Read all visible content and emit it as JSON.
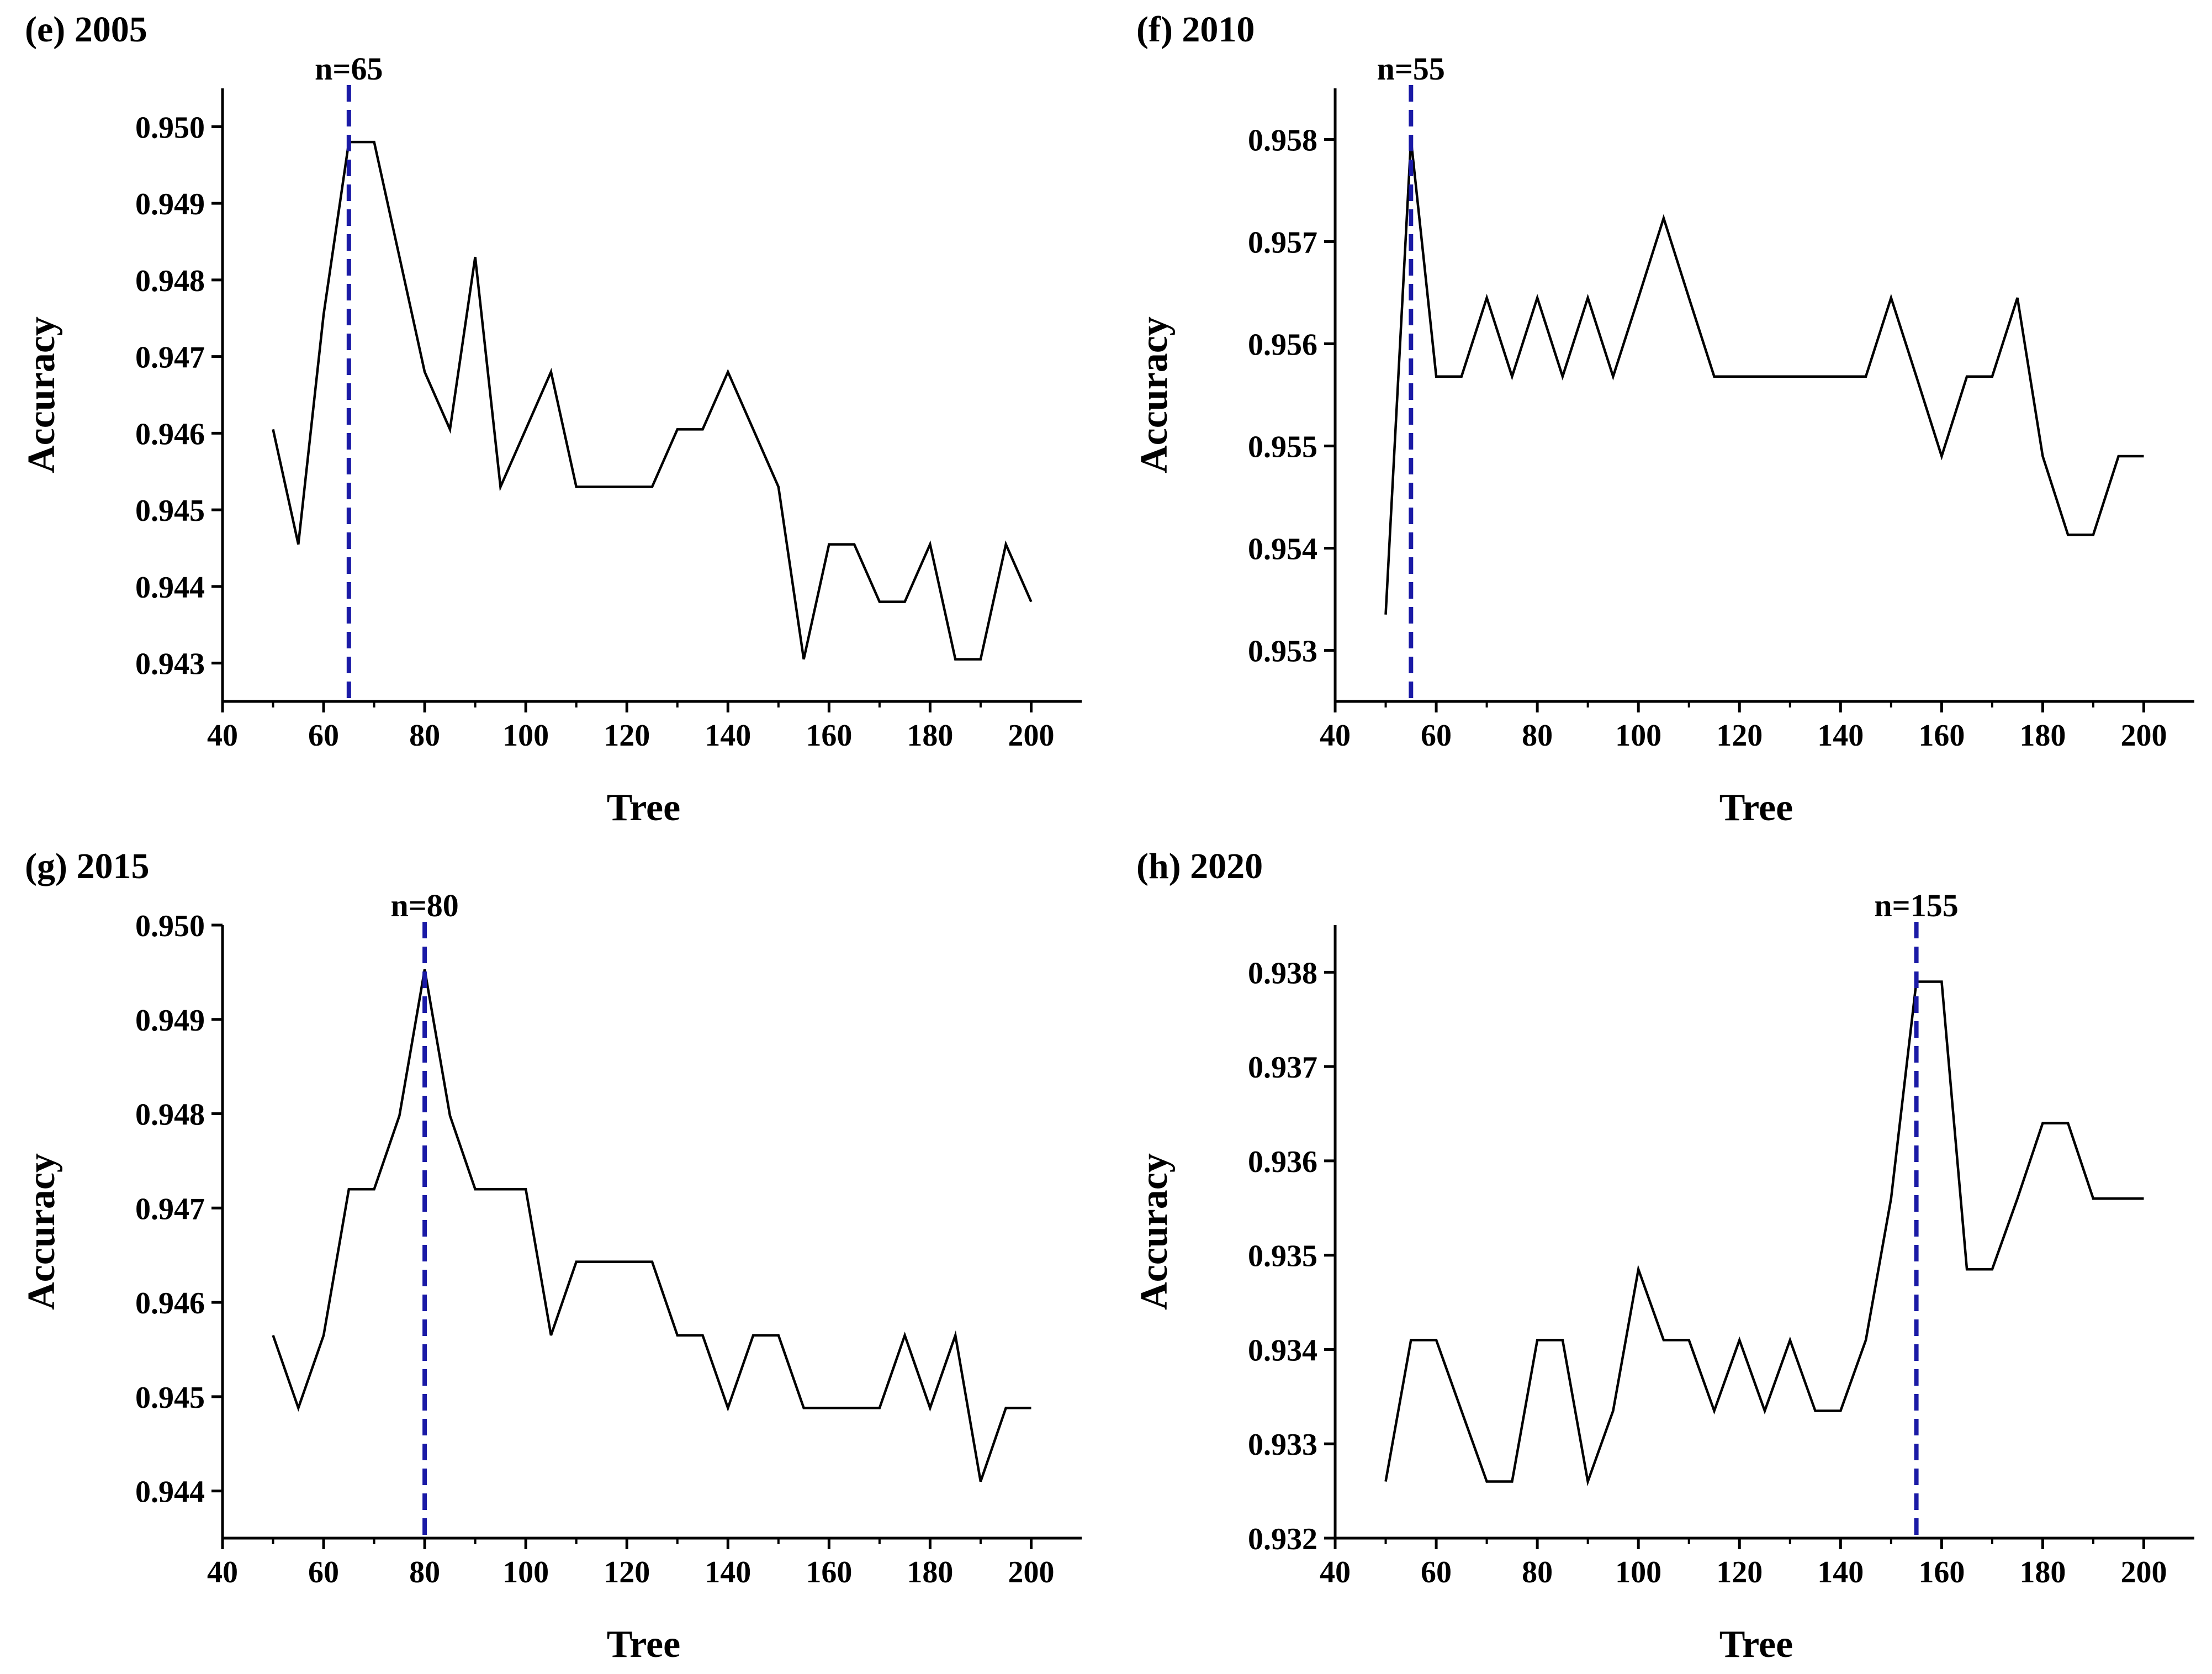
{
  "colors": {
    "line": "#000000",
    "marker": "#1a1aa6",
    "axis": "#000000",
    "background": "#ffffff"
  },
  "chart_data": [
    {
      "type": "line",
      "title": "(e) 2005",
      "xlabel": "Tree",
      "ylabel": "Accuracy",
      "xlim": [
        40,
        210
      ],
      "ylim": [
        0.9425,
        0.9505
      ],
      "xticks": [
        40,
        60,
        80,
        100,
        120,
        140,
        160,
        180,
        200
      ],
      "xtick_labels": [
        "40",
        "60",
        "80",
        "100",
        "120",
        "140",
        "160",
        "180",
        "200"
      ],
      "yticks": [
        0.943,
        0.944,
        0.945,
        0.946,
        0.947,
        0.948,
        0.949,
        0.95
      ],
      "ytick_labels": [
        "0.943",
        "0.944",
        "0.945",
        "0.946",
        "0.947",
        "0.948",
        "0.949",
        "0.950"
      ],
      "x": [
        50,
        55,
        60,
        65,
        70,
        75,
        80,
        85,
        90,
        95,
        100,
        105,
        110,
        115,
        120,
        125,
        130,
        135,
        140,
        145,
        150,
        155,
        160,
        165,
        170,
        175,
        180,
        185,
        190,
        195,
        200
      ],
      "y": [
        0.94605,
        0.94455,
        0.94755,
        0.9498,
        0.9498,
        0.9483,
        0.9468,
        0.94605,
        0.9483,
        0.9453,
        0.94605,
        0.9468,
        0.9453,
        0.9453,
        0.9453,
        0.9453,
        0.94605,
        0.94605,
        0.9468,
        0.94605,
        0.9453,
        0.94305,
        0.94455,
        0.94455,
        0.9438,
        0.9438,
        0.94455,
        0.94305,
        0.94305,
        0.94455,
        0.9438
      ],
      "marker_x": 65,
      "marker_label": "n=65"
    },
    {
      "type": "line",
      "title": "(f) 2010",
      "xlabel": "Tree",
      "ylabel": "Accuracy",
      "xlim": [
        40,
        210
      ],
      "ylim": [
        0.9525,
        0.9585
      ],
      "xticks": [
        40,
        60,
        80,
        100,
        120,
        140,
        160,
        180,
        200
      ],
      "xtick_labels": [
        "40",
        "60",
        "80",
        "100",
        "120",
        "140",
        "160",
        "180",
        "200"
      ],
      "yticks": [
        0.953,
        0.954,
        0.955,
        0.956,
        0.957,
        0.958
      ],
      "ytick_labels": [
        "0.953",
        "0.954",
        "0.955",
        "0.956",
        "0.957",
        "0.958"
      ],
      "x": [
        50,
        55,
        60,
        65,
        70,
        75,
        80,
        85,
        90,
        95,
        100,
        105,
        110,
        115,
        120,
        125,
        130,
        135,
        140,
        145,
        150,
        155,
        160,
        165,
        170,
        175,
        180,
        185,
        190,
        195,
        200
      ],
      "y": [
        0.95335,
        0.958,
        0.95568,
        0.95568,
        0.95645,
        0.95568,
        0.95645,
        0.95568,
        0.95645,
        0.95568,
        0.95645,
        0.95723,
        0.95645,
        0.95568,
        0.95568,
        0.95568,
        0.95568,
        0.95568,
        0.95568,
        0.95568,
        0.95645,
        0.95568,
        0.9549,
        0.95568,
        0.95568,
        0.95645,
        0.9549,
        0.95413,
        0.95413,
        0.9549,
        0.9549
      ],
      "marker_x": 55,
      "marker_label": "n=55"
    },
    {
      "type": "line",
      "title": "(g) 2015",
      "xlabel": "Tree",
      "ylabel": "Accuracy",
      "xlim": [
        40,
        210
      ],
      "ylim": [
        0.9435,
        0.95
      ],
      "xticks": [
        40,
        60,
        80,
        100,
        120,
        140,
        160,
        180,
        200
      ],
      "xtick_labels": [
        "40",
        "60",
        "80",
        "100",
        "120",
        "140",
        "160",
        "180",
        "200"
      ],
      "yticks": [
        0.944,
        0.945,
        0.946,
        0.947,
        0.948,
        0.949,
        0.95
      ],
      "ytick_labels": [
        "0.944",
        "0.945",
        "0.946",
        "0.947",
        "0.948",
        "0.949",
        "0.950"
      ],
      "x": [
        50,
        55,
        60,
        65,
        70,
        75,
        80,
        85,
        90,
        95,
        100,
        105,
        110,
        115,
        120,
        125,
        130,
        135,
        140,
        145,
        150,
        155,
        160,
        165,
        170,
        175,
        180,
        185,
        190,
        195,
        200
      ],
      "y": [
        0.94565,
        0.94488,
        0.94565,
        0.9472,
        0.9472,
        0.94798,
        0.94953,
        0.94798,
        0.9472,
        0.9472,
        0.9472,
        0.94565,
        0.94643,
        0.94643,
        0.94643,
        0.94643,
        0.94565,
        0.94565,
        0.94488,
        0.94565,
        0.94565,
        0.94488,
        0.94488,
        0.94488,
        0.94488,
        0.94565,
        0.94488,
        0.94565,
        0.9441,
        0.94488,
        0.94488
      ],
      "marker_x": 80,
      "marker_label": "n=80"
    },
    {
      "type": "line",
      "title": "(h) 2020",
      "xlabel": "Tree",
      "ylabel": "Accuracy",
      "xlim": [
        40,
        210
      ],
      "ylim": [
        0.932,
        0.9385
      ],
      "xticks": [
        40,
        60,
        80,
        100,
        120,
        140,
        160,
        180,
        200
      ],
      "xtick_labels": [
        "40",
        "60",
        "80",
        "100",
        "120",
        "140",
        "160",
        "180",
        "200"
      ],
      "yticks": [
        0.932,
        0.933,
        0.934,
        0.935,
        0.936,
        0.937,
        0.938
      ],
      "ytick_labels": [
        "0.932",
        "0.933",
        "0.934",
        "0.935",
        "0.936",
        "0.937",
        "0.938"
      ],
      "x": [
        50,
        55,
        60,
        65,
        70,
        75,
        80,
        85,
        90,
        95,
        100,
        105,
        110,
        115,
        120,
        125,
        130,
        135,
        140,
        145,
        150,
        155,
        160,
        165,
        170,
        175,
        180,
        185,
        190,
        195,
        200
      ],
      "y": [
        0.9326,
        0.9341,
        0.9341,
        0.93335,
        0.9326,
        0.9326,
        0.9341,
        0.9341,
        0.9326,
        0.93335,
        0.93485,
        0.9341,
        0.9341,
        0.93335,
        0.9341,
        0.93335,
        0.9341,
        0.93335,
        0.93335,
        0.9341,
        0.9356,
        0.9379,
        0.9379,
        0.93485,
        0.93485,
        0.9356,
        0.9364,
        0.9364,
        0.9356,
        0.9356,
        0.9356
      ],
      "marker_x": 155,
      "marker_label": "n=155"
    }
  ]
}
